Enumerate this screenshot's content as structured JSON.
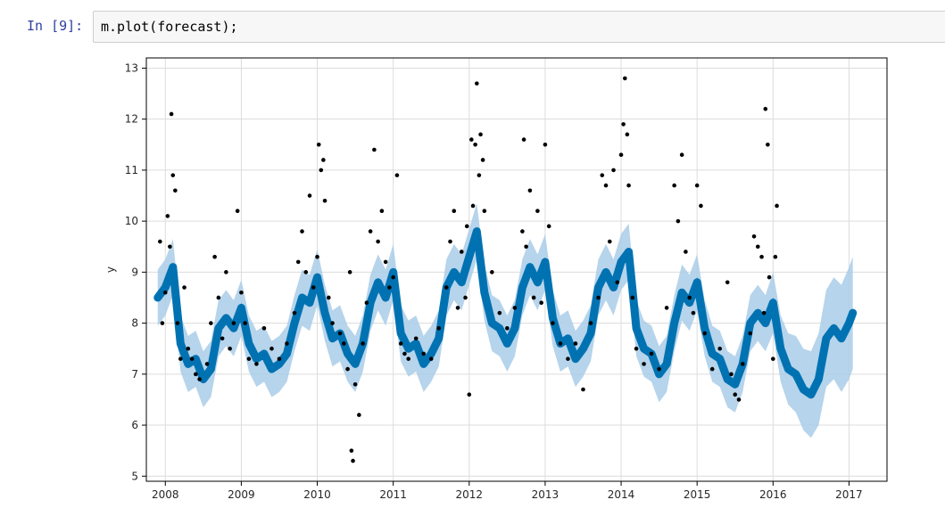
{
  "notebook": {
    "prompt": "In [9]:",
    "code": "m.plot(forecast);"
  },
  "chart_data": {
    "type": "line",
    "xlabel": "",
    "ylabel": "y",
    "xlim": [
      2007.75,
      2017.5
    ],
    "ylim": [
      4.9,
      13.2
    ],
    "x_ticks": [
      "2008",
      "2009",
      "2010",
      "2011",
      "2012",
      "2013",
      "2014",
      "2015",
      "2016",
      "2017"
    ],
    "y_ticks": [
      "5",
      "6",
      "7",
      "8",
      "9",
      "10",
      "11",
      "12",
      "13"
    ],
    "grid": true,
    "colors": {
      "forecast_line": "#0072b2",
      "uncertainty_band": "#a9cde8",
      "observations": "#000000"
    },
    "forecast": {
      "x": [
        2007.9,
        2008.0,
        2008.1,
        2008.2,
        2008.3,
        2008.4,
        2008.5,
        2008.6,
        2008.7,
        2008.8,
        2008.9,
        2009.0,
        2009.1,
        2009.2,
        2009.3,
        2009.4,
        2009.5,
        2009.6,
        2009.7,
        2009.8,
        2009.9,
        2010.0,
        2010.1,
        2010.2,
        2010.3,
        2010.4,
        2010.5,
        2010.6,
        2010.7,
        2010.8,
        2010.9,
        2011.0,
        2011.1,
        2011.2,
        2011.3,
        2011.4,
        2011.5,
        2011.6,
        2011.7,
        2011.8,
        2011.9,
        2012.0,
        2012.1,
        2012.2,
        2012.3,
        2012.4,
        2012.5,
        2012.6,
        2012.7,
        2012.8,
        2012.9,
        2013.0,
        2013.1,
        2013.2,
        2013.3,
        2013.4,
        2013.5,
        2013.6,
        2013.7,
        2013.8,
        2013.9,
        2014.0,
        2014.1,
        2014.2,
        2014.3,
        2014.4,
        2014.5,
        2014.6,
        2014.7,
        2014.8,
        2014.9,
        2015.0,
        2015.1,
        2015.2,
        2015.3,
        2015.4,
        2015.5,
        2015.6,
        2015.7,
        2015.8,
        2015.9,
        2016.0,
        2016.1,
        2016.2,
        2016.3,
        2016.4,
        2016.5,
        2016.6,
        2016.7,
        2016.8,
        2016.9,
        2017.0,
        2017.05
      ],
      "yhat": [
        8.5,
        8.7,
        9.1,
        7.6,
        7.2,
        7.3,
        6.9,
        7.1,
        7.9,
        8.1,
        7.9,
        8.3,
        7.6,
        7.3,
        7.4,
        7.1,
        7.2,
        7.4,
        8.0,
        8.5,
        8.4,
        8.9,
        8.2,
        7.7,
        7.8,
        7.4,
        7.2,
        7.6,
        8.4,
        8.8,
        8.5,
        9.0,
        7.8,
        7.5,
        7.6,
        7.2,
        7.4,
        7.7,
        8.7,
        9.0,
        8.8,
        9.3,
        9.8,
        8.6,
        8.0,
        7.9,
        7.6,
        7.9,
        8.7,
        9.1,
        8.8,
        9.2,
        8.1,
        7.6,
        7.7,
        7.3,
        7.5,
        7.8,
        8.7,
        9.0,
        8.7,
        9.2,
        9.4,
        7.9,
        7.5,
        7.4,
        7.0,
        7.2,
        8.0,
        8.6,
        8.4,
        8.8,
        7.9,
        7.4,
        7.3,
        6.9,
        6.8,
        7.2,
        8.0,
        8.2,
        8.0,
        8.4,
        7.5,
        7.1,
        7.0,
        6.7,
        6.6,
        6.9,
        7.7,
        7.9,
        7.7,
        8.0,
        8.2
      ],
      "band_halfwidth": [
        0.55,
        0.55,
        0.55,
        0.55,
        0.55,
        0.55,
        0.55,
        0.55,
        0.55,
        0.55,
        0.55,
        0.55,
        0.55,
        0.55,
        0.55,
        0.55,
        0.55,
        0.55,
        0.55,
        0.55,
        0.55,
        0.55,
        0.55,
        0.55,
        0.55,
        0.55,
        0.55,
        0.55,
        0.55,
        0.55,
        0.55,
        0.55,
        0.55,
        0.55,
        0.55,
        0.55,
        0.55,
        0.55,
        0.55,
        0.55,
        0.55,
        0.55,
        0.55,
        0.55,
        0.55,
        0.55,
        0.55,
        0.55,
        0.55,
        0.55,
        0.55,
        0.55,
        0.55,
        0.55,
        0.55,
        0.55,
        0.55,
        0.55,
        0.55,
        0.55,
        0.55,
        0.55,
        0.55,
        0.55,
        0.55,
        0.55,
        0.55,
        0.55,
        0.55,
        0.55,
        0.55,
        0.55,
        0.55,
        0.55,
        0.55,
        0.55,
        0.55,
        0.55,
        0.55,
        0.55,
        0.55,
        0.6,
        0.65,
        0.7,
        0.75,
        0.8,
        0.85,
        0.9,
        0.95,
        1.0,
        1.05,
        1.1,
        1.1
      ]
    },
    "observations": {
      "x": [
        2007.93,
        2007.96,
        2008.0,
        2008.03,
        2008.06,
        2008.08,
        2008.1,
        2008.13,
        2008.16,
        2008.2,
        2008.25,
        2008.3,
        2008.35,
        2008.4,
        2008.45,
        2008.55,
        2008.6,
        2008.65,
        2008.7,
        2008.75,
        2008.8,
        2008.85,
        2008.9,
        2008.95,
        2009.0,
        2009.05,
        2009.1,
        2009.2,
        2009.3,
        2009.4,
        2009.5,
        2009.6,
        2009.7,
        2009.75,
        2009.8,
        2009.85,
        2009.9,
        2009.95,
        2010.0,
        2010.02,
        2010.05,
        2010.08,
        2010.1,
        2010.15,
        2010.2,
        2010.3,
        2010.35,
        2010.4,
        2010.43,
        2010.45,
        2010.47,
        2010.5,
        2010.55,
        2010.6,
        2010.65,
        2010.7,
        2010.75,
        2010.8,
        2010.85,
        2010.9,
        2010.95,
        2011.0,
        2011.05,
        2011.1,
        2011.15,
        2011.2,
        2011.3,
        2011.4,
        2011.5,
        2011.6,
        2011.7,
        2011.75,
        2011.8,
        2011.85,
        2011.9,
        2011.95,
        2011.97,
        2012.0,
        2012.03,
        2012.05,
        2012.08,
        2012.1,
        2012.13,
        2012.15,
        2012.18,
        2012.2,
        2012.3,
        2012.4,
        2012.5,
        2012.6,
        2012.7,
        2012.72,
        2012.75,
        2012.8,
        2012.85,
        2012.9,
        2012.95,
        2013.0,
        2013.05,
        2013.1,
        2013.2,
        2013.3,
        2013.4,
        2013.5,
        2013.6,
        2013.7,
        2013.75,
        2013.8,
        2013.85,
        2013.9,
        2013.95,
        2014.0,
        2014.03,
        2014.05,
        2014.08,
        2014.1,
        2014.15,
        2014.2,
        2014.3,
        2014.4,
        2014.5,
        2014.6,
        2014.7,
        2014.75,
        2014.8,
        2014.85,
        2014.9,
        2014.95,
        2015.0,
        2015.05,
        2015.1,
        2015.2,
        2015.3,
        2015.4,
        2015.45,
        2015.5,
        2015.55,
        2015.6,
        2015.7,
        2015.75,
        2015.8,
        2015.85,
        2015.88,
        2015.9,
        2015.93,
        2015.95,
        2016.0,
        2016.03,
        2016.05
      ],
      "y": [
        9.6,
        8.0,
        8.6,
        10.1,
        9.5,
        12.1,
        10.9,
        10.6,
        8.0,
        7.3,
        8.7,
        7.5,
        7.3,
        7.0,
        6.9,
        7.2,
        8.0,
        9.3,
        8.5,
        7.7,
        9.0,
        7.5,
        8.0,
        10.2,
        8.6,
        8.0,
        7.3,
        7.2,
        7.9,
        7.5,
        7.3,
        7.6,
        8.2,
        9.2,
        9.8,
        9.0,
        10.5,
        8.7,
        9.3,
        11.5,
        11.0,
        11.2,
        10.4,
        8.5,
        8.0,
        7.8,
        7.6,
        7.1,
        9.0,
        5.5,
        5.3,
        6.8,
        6.2,
        7.6,
        8.4,
        9.8,
        11.4,
        9.6,
        10.2,
        9.2,
        8.7,
        8.9,
        10.9,
        7.6,
        7.4,
        7.3,
        7.7,
        7.4,
        7.3,
        7.9,
        8.7,
        9.6,
        10.2,
        8.3,
        9.4,
        8.5,
        9.9,
        6.6,
        11.6,
        10.3,
        11.5,
        12.7,
        10.9,
        11.7,
        11.2,
        10.2,
        9.0,
        8.2,
        7.9,
        8.3,
        9.8,
        11.6,
        9.5,
        10.6,
        8.5,
        10.2,
        8.4,
        11.5,
        9.9,
        8.0,
        7.6,
        7.3,
        7.6,
        6.7,
        8.0,
        8.5,
        10.9,
        10.7,
        9.6,
        11.0,
        8.8,
        11.3,
        11.9,
        12.8,
        11.7,
        10.7,
        8.5,
        7.5,
        7.2,
        7.4,
        7.1,
        8.3,
        10.7,
        10.0,
        11.3,
        9.4,
        8.5,
        8.2,
        10.7,
        10.3,
        7.8,
        7.1,
        7.5,
        8.8,
        7.0,
        6.6,
        6.5,
        7.2,
        7.8,
        9.7,
        9.5,
        9.3,
        8.2,
        12.2,
        11.5,
        8.9,
        7.3,
        9.3,
        10.3
      ]
    }
  }
}
